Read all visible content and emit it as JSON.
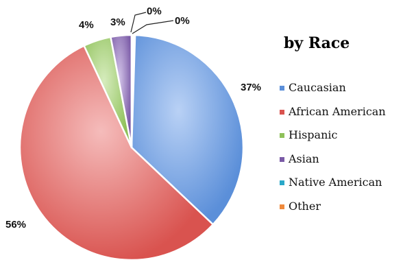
{
  "chart_data": {
    "type": "pie",
    "title": "by Race",
    "slices": [
      {
        "name": "Caucasian",
        "value": 37,
        "label": "37%",
        "color": "#5b8fd9",
        "light": "#b9d1f5"
      },
      {
        "name": "African American",
        "value": 56,
        "label": "56%",
        "color": "#d9534f",
        "light": "#f5bcbb"
      },
      {
        "name": "Hispanic",
        "value": 4,
        "label": "4%",
        "color": "#8fc15a",
        "light": "#d6ecbd"
      },
      {
        "name": "Asian",
        "value": 3,
        "label": "3%",
        "color": "#7a5aa6",
        "light": "#d2c3e8"
      },
      {
        "name": "Native American",
        "value": 0,
        "label": "0%",
        "color": "#2aa8c9",
        "light": "#a9e0ef"
      },
      {
        "name": "Other",
        "value": 0,
        "label": "0%",
        "color": "#f08a3c",
        "light": "#fbd3b4"
      }
    ],
    "legend_position": "right"
  }
}
